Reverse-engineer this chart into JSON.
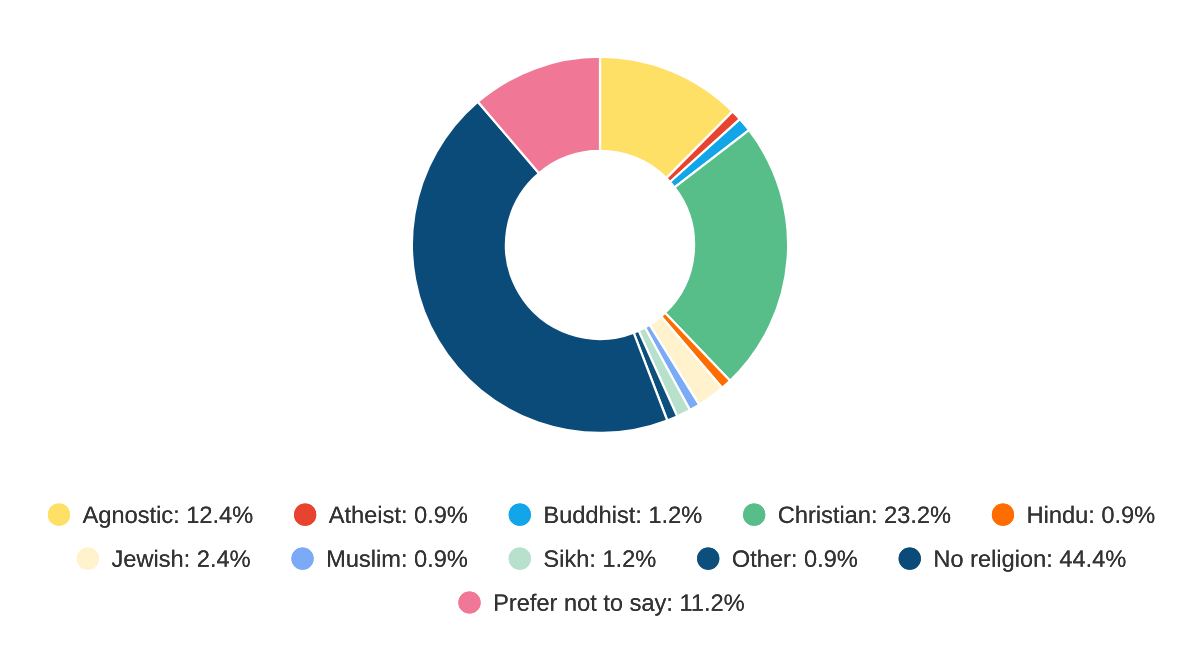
{
  "chart_data": {
    "type": "donut",
    "categories": [
      "Agnostic: 12.4%",
      "Atheist: 0.9%",
      "Buddhist: 1.2%",
      "Christian: 23.2%",
      "Hindu: 0.9%",
      "Jewish: 2.4%",
      "Muslim: 0.9%",
      "Sikh: 1.2%",
      "Other: 0.9%",
      "No religion: 44.4%",
      "Prefer not to say: 11.2%"
    ],
    "values": [
      12.4,
      0.9,
      1.2,
      23.2,
      0.9,
      2.4,
      0.9,
      1.2,
      0.9,
      44.4,
      11.2
    ],
    "colors": [
      "#ffe066",
      "#e8432e",
      "#12a5e8",
      "#57bd89",
      "#ff6d00",
      "#fff2cc",
      "#7baaf7",
      "#b7e1cd",
      "#0d4f7c",
      "#0b4b79",
      "#f07896"
    ],
    "legend": "bottom"
  }
}
